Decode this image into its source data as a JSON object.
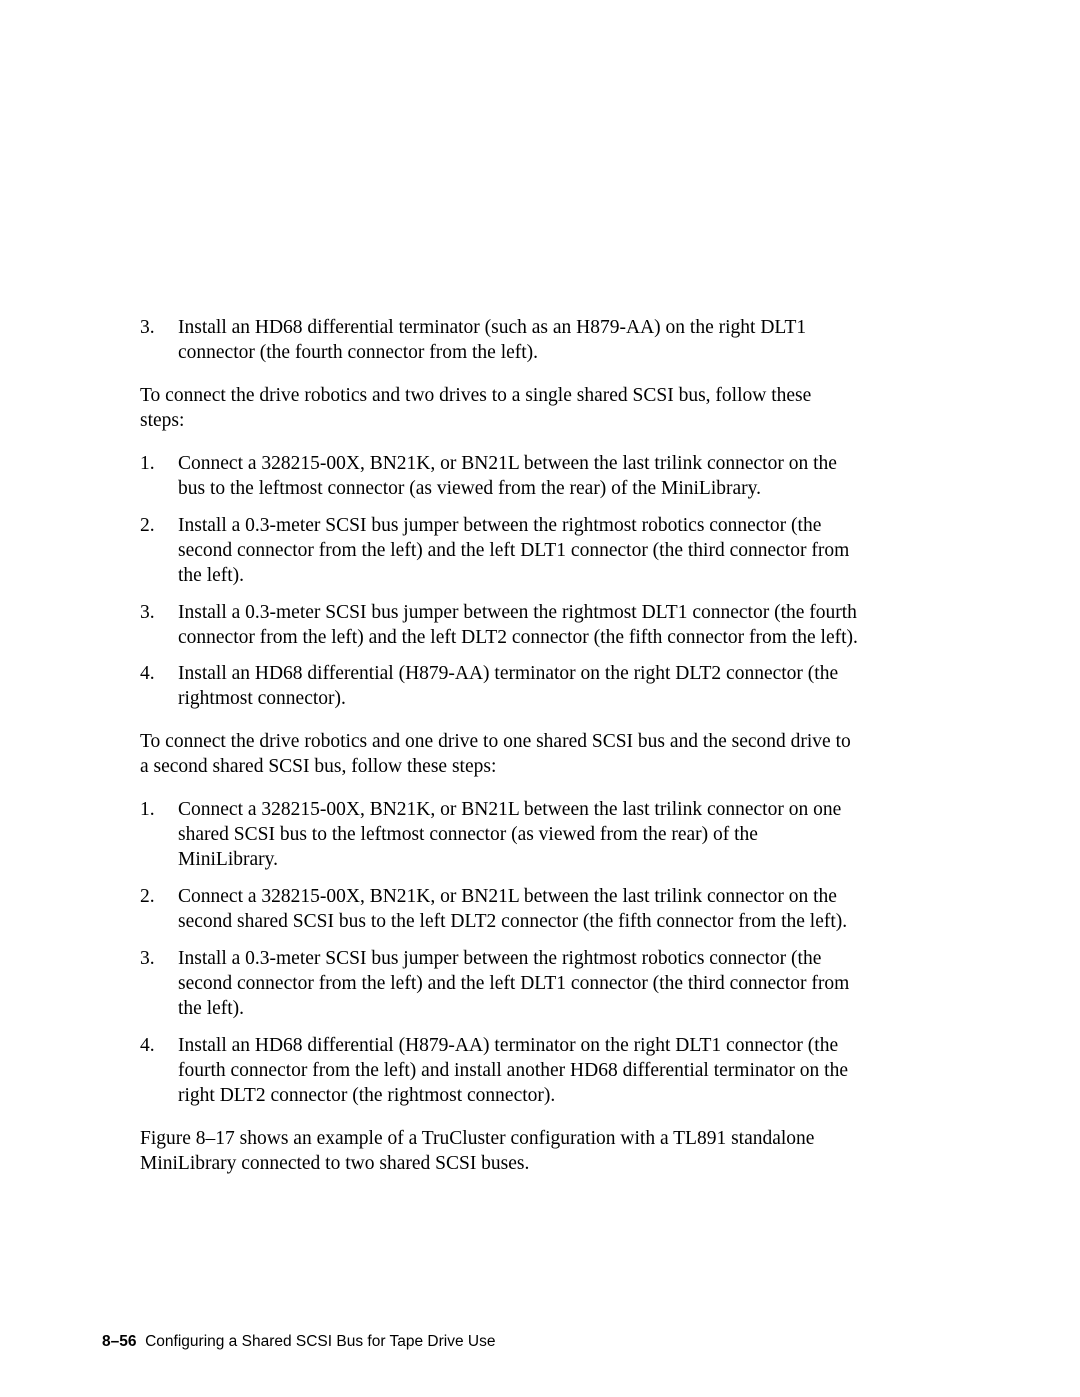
{
  "list1": {
    "items": [
      {
        "num": "3.",
        "text": "Install an HD68 differential terminator (such as an H879-AA) on the right DLT1 connector (the fourth connector from the left)."
      }
    ]
  },
  "para1": "To connect the drive robotics and two drives to a single shared SCSI bus, follow these steps:",
  "list2": {
    "items": [
      {
        "num": "1.",
        "text": "Connect a 328215-00X, BN21K, or BN21L between the last trilink connector on the bus to the leftmost connector (as viewed from the rear) of the MiniLibrary."
      },
      {
        "num": "2.",
        "text": "Install a 0.3-meter SCSI bus jumper between the rightmost robotics connector (the second connector from the left) and the left DLT1 connector (the third connector from the left)."
      },
      {
        "num": "3.",
        "text": "Install a 0.3-meter SCSI bus jumper between the rightmost DLT1 connector (the fourth connector from the left) and the left DLT2 connector (the fifth connector from the left)."
      },
      {
        "num": "4.",
        "text": "Install an HD68 differential (H879-AA) terminator on the right DLT2 connector (the rightmost connector)."
      }
    ]
  },
  "para2": "To connect the drive robotics and one drive to one shared SCSI bus and the second drive to a second shared SCSI bus, follow these steps:",
  "list3": {
    "items": [
      {
        "num": "1.",
        "text": "Connect a 328215-00X, BN21K, or BN21L between the last trilink connector on one shared SCSI bus to the leftmost connector (as viewed from the rear) of the MiniLibrary."
      },
      {
        "num": "2.",
        "text": "Connect a 328215-00X, BN21K, or BN21L between the last trilink connector on the second shared SCSI bus to the left DLT2 connector (the fifth connector from the left)."
      },
      {
        "num": "3.",
        "text": "Install a 0.3-meter SCSI bus jumper between the rightmost robotics connector (the second connector from the left) and the left DLT1 connector (the third connector from the left)."
      },
      {
        "num": "4.",
        "text": "Install an HD68 differential (H879-AA) terminator on the right DLT1 connector (the fourth connector from the left) and install another HD68 differential terminator on the right DLT2 connector (the rightmost connector)."
      }
    ]
  },
  "para3": "Figure 8–17 shows an example of a TruCluster configuration with a TL891 standalone MiniLibrary connected to two shared SCSI buses.",
  "footer": {
    "page": "8–56",
    "title": "Configuring a Shared SCSI Bus for Tape Drive Use"
  }
}
